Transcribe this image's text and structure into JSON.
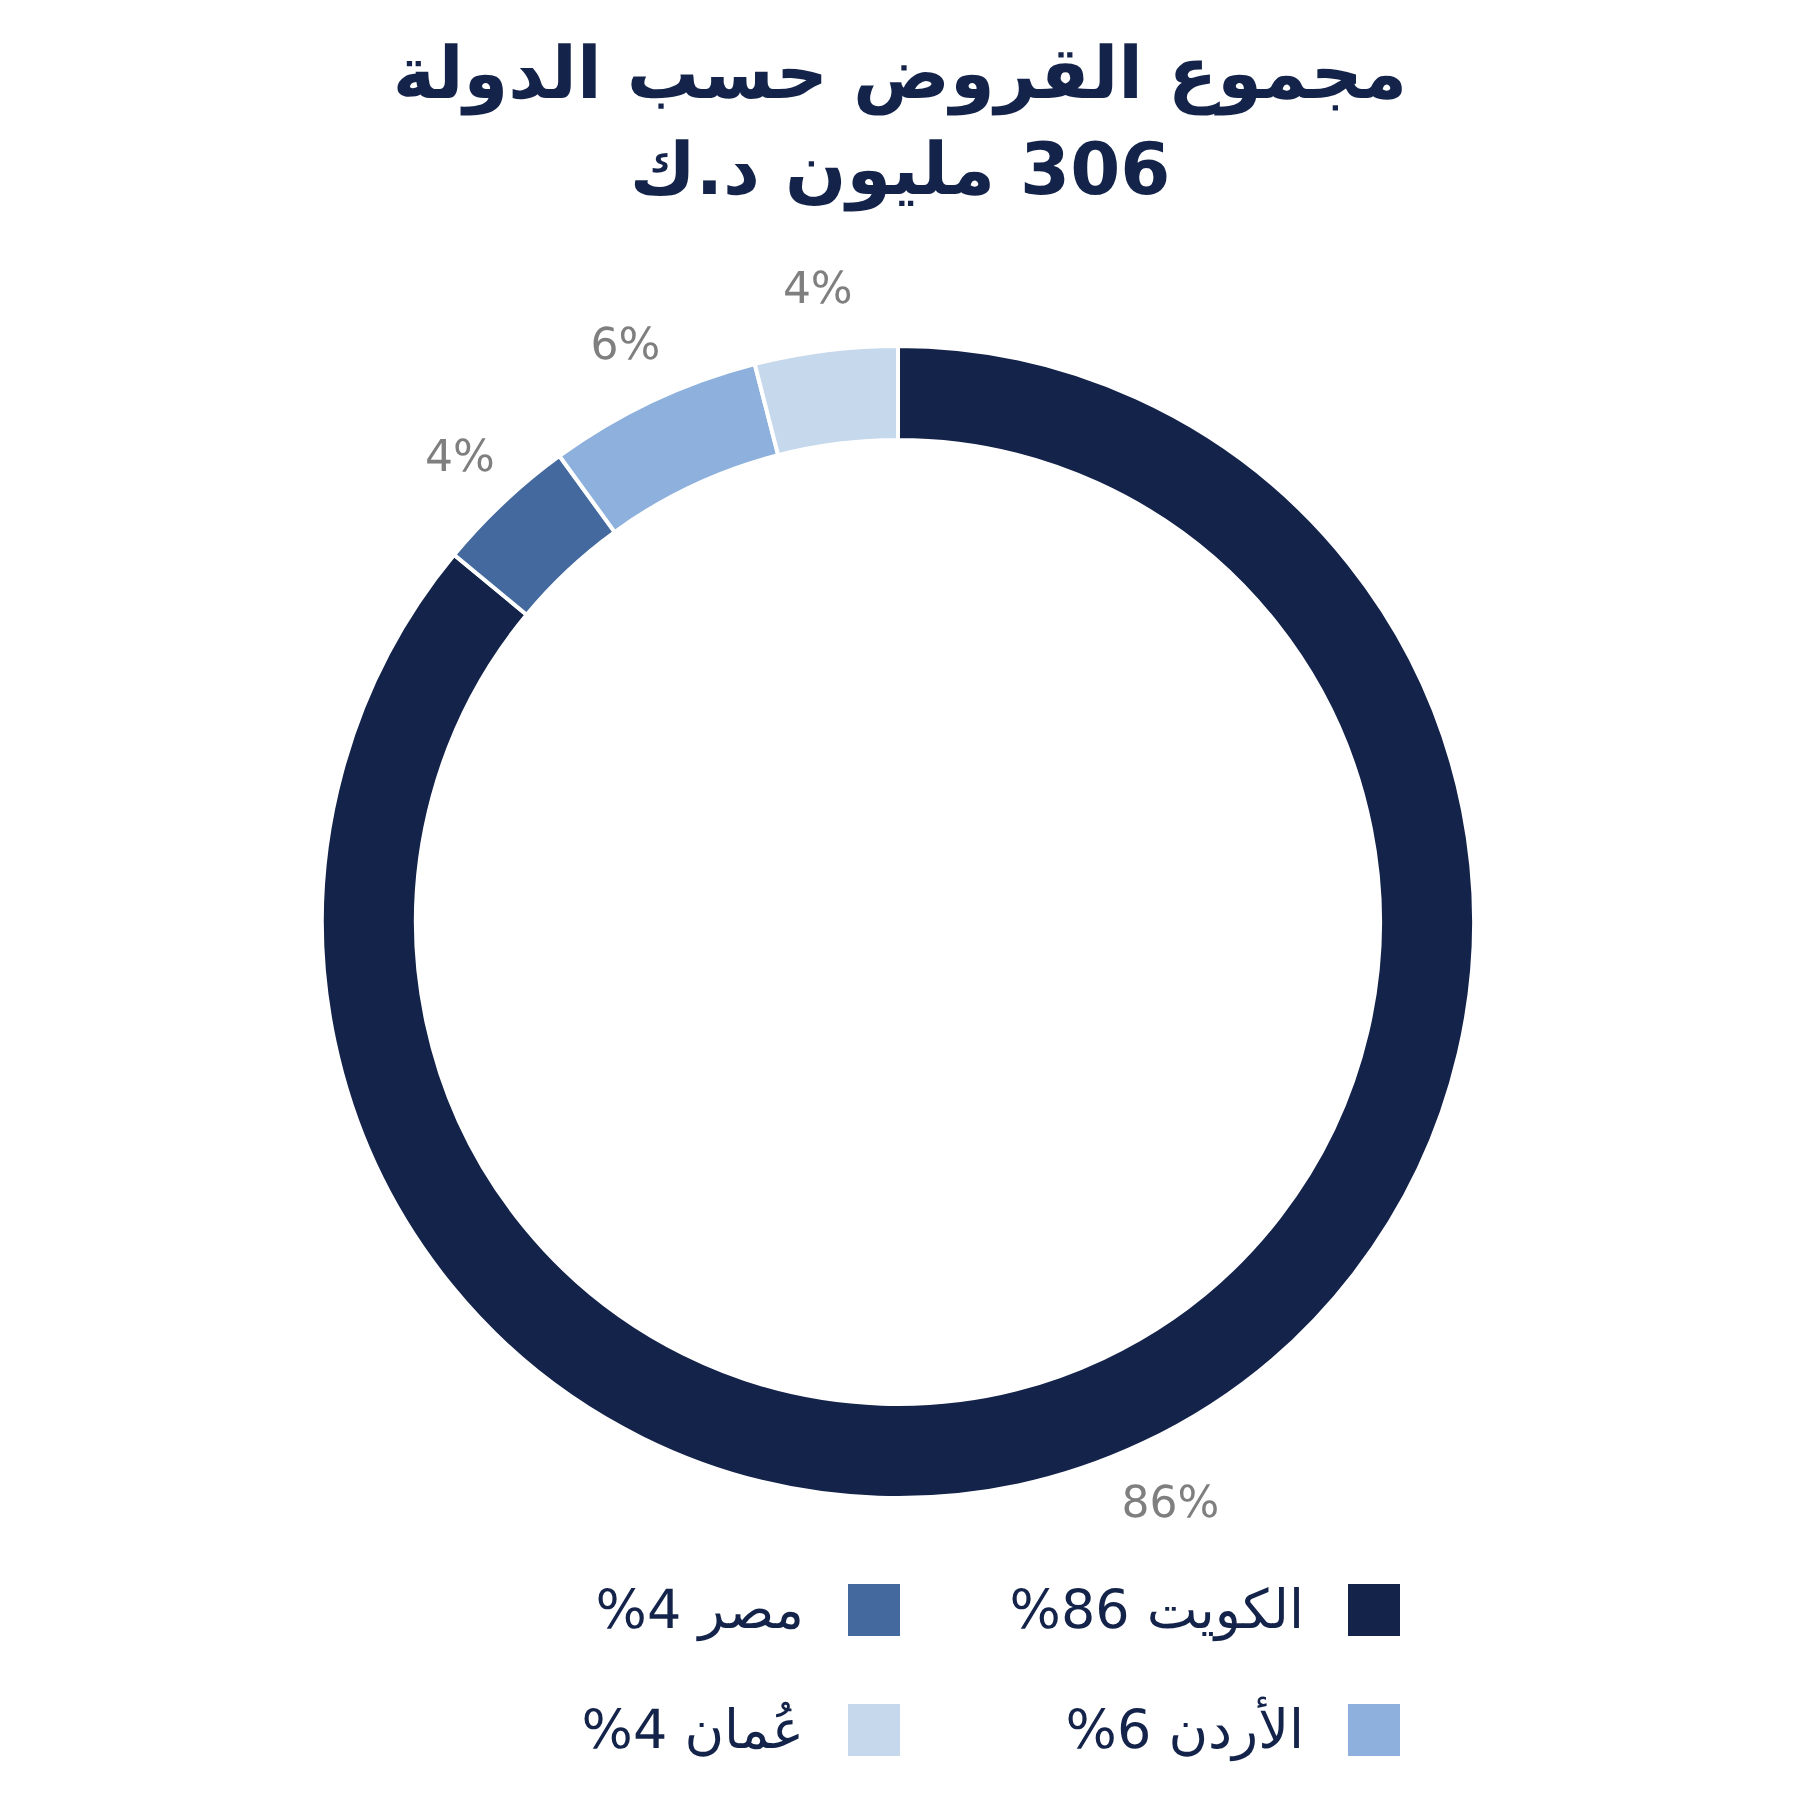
{
  "chart_data": {
    "type": "donut",
    "title": "مجموع القروض حسب الدولة",
    "subtitle": "306 مليون د.ك",
    "categories": [
      "الكويت",
      "مصر",
      "الأردن",
      "عُمان"
    ],
    "values": [
      86,
      4,
      6,
      4
    ],
    "colors": [
      "#14234a",
      "#44699e",
      "#8eb0dd",
      "#c5d8ec"
    ],
    "value_labels": [
      "86%",
      "4%",
      "6%",
      "4%"
    ],
    "legend": "bottom"
  }
}
